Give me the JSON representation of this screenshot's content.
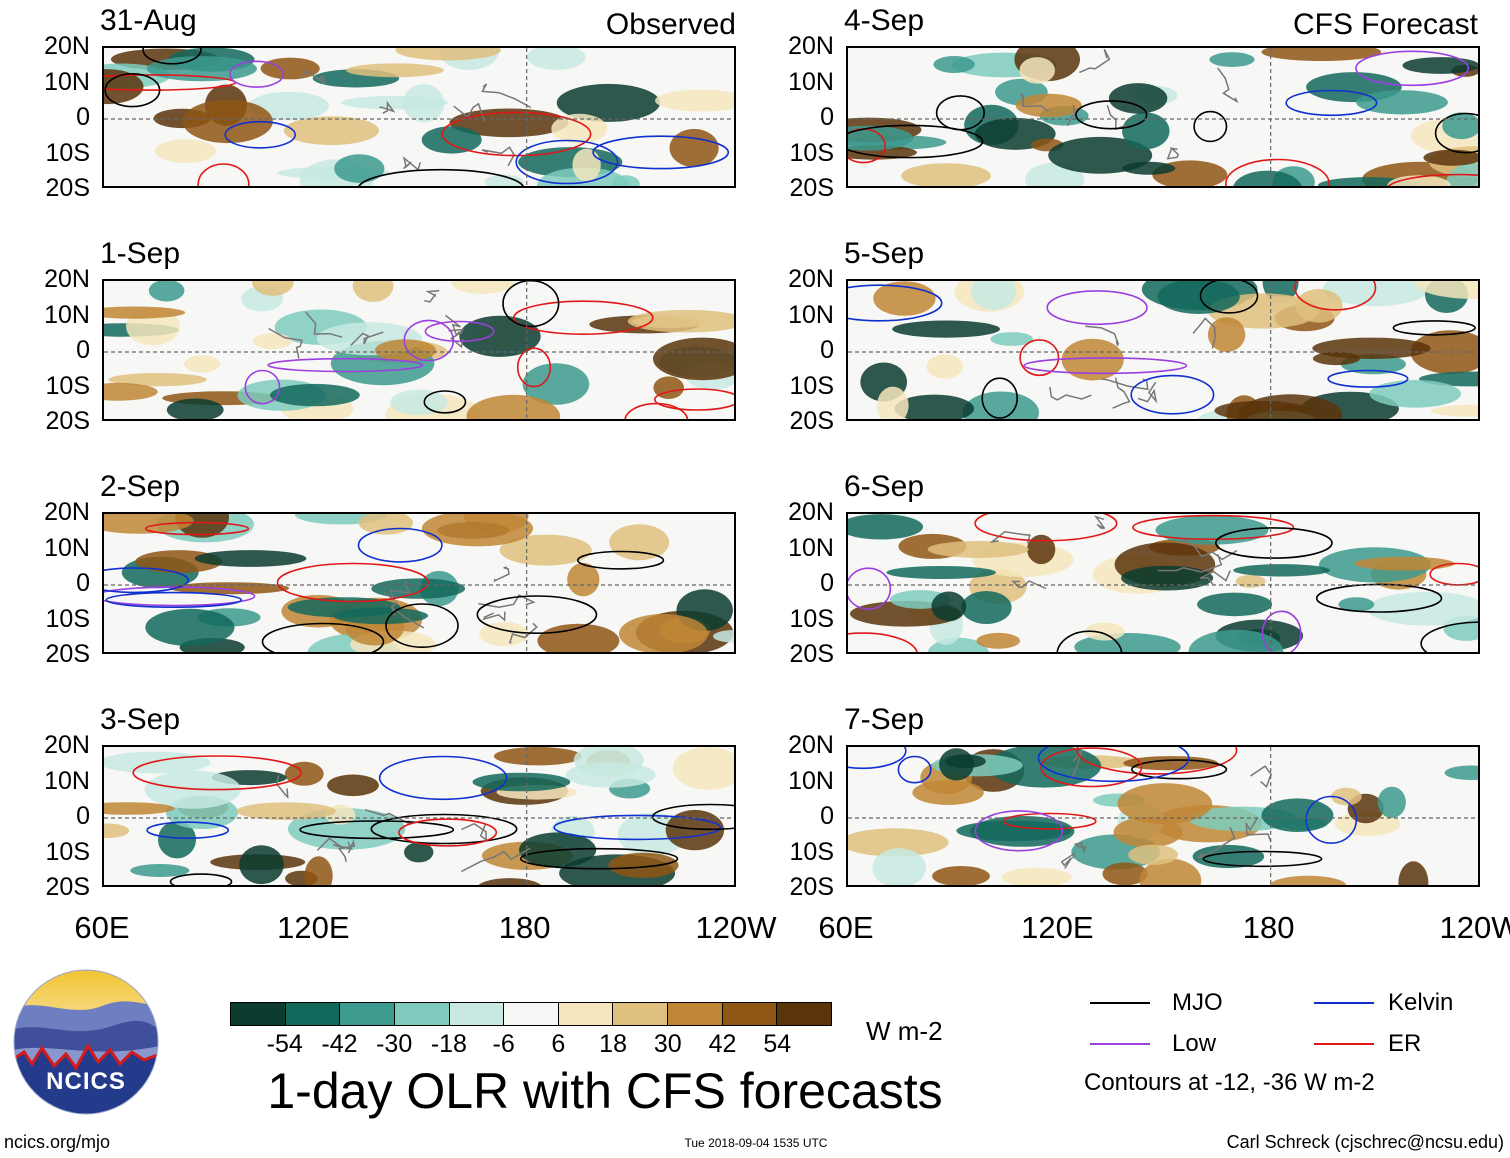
{
  "left_header": "Observed",
  "right_header": "CFS Forecast",
  "lat_labels": [
    "20N",
    "10N",
    "0",
    "10S",
    "20S"
  ],
  "lon_labels": [
    "60E",
    "120E",
    "180",
    "120W"
  ],
  "chart_data": [
    {
      "type": "heatmap",
      "date": "31-Aug",
      "group": "Observed",
      "xlim": [
        "60E",
        "120W"
      ],
      "ylim": [
        "20S",
        "20N"
      ]
    },
    {
      "type": "heatmap",
      "date": "1-Sep",
      "group": "Observed",
      "xlim": [
        "60E",
        "120W"
      ],
      "ylim": [
        "20S",
        "20N"
      ]
    },
    {
      "type": "heatmap",
      "date": "2-Sep",
      "group": "Observed",
      "xlim": [
        "60E",
        "120W"
      ],
      "ylim": [
        "20S",
        "20N"
      ]
    },
    {
      "type": "heatmap",
      "date": "3-Sep",
      "group": "Observed",
      "xlim": [
        "60E",
        "120W"
      ],
      "ylim": [
        "20S",
        "20N"
      ]
    },
    {
      "type": "heatmap",
      "date": "4-Sep",
      "group": "CFS Forecast",
      "xlim": [
        "60E",
        "120W"
      ],
      "ylim": [
        "20S",
        "20N"
      ]
    },
    {
      "type": "heatmap",
      "date": "5-Sep",
      "group": "CFS Forecast",
      "xlim": [
        "60E",
        "120W"
      ],
      "ylim": [
        "20S",
        "20N"
      ]
    },
    {
      "type": "heatmap",
      "date": "6-Sep",
      "group": "CFS Forecast",
      "xlim": [
        "60E",
        "120W"
      ],
      "ylim": [
        "20S",
        "20N"
      ]
    },
    {
      "type": "heatmap",
      "date": "7-Sep",
      "group": "CFS Forecast",
      "xlim": [
        "60E",
        "120W"
      ],
      "ylim": [
        "20S",
        "20N"
      ]
    }
  ],
  "colorbar": {
    "colors": [
      "#0b3c2f",
      "#13685c",
      "#3c9a8e",
      "#7ecbbd",
      "#c7e9e2",
      "#f7f7f5",
      "#f5e6bd",
      "#dfc07e",
      "#bf8635",
      "#8f5614",
      "#5a340a"
    ],
    "labels": [
      "-54",
      "-42",
      "-30",
      "-18",
      "-6",
      "6",
      "18",
      "30",
      "42",
      "54"
    ],
    "units": "W m-2"
  },
  "legend": {
    "items": [
      {
        "label": "MJO",
        "color": "#000000"
      },
      {
        "label": "Kelvin",
        "color": "#1030d0"
      },
      {
        "label": "Low",
        "color": "#9b3fe0"
      },
      {
        "label": "ER",
        "color": "#e01818"
      }
    ],
    "note": "Contours at -12, -36 W m-2"
  },
  "logo_text": "NCICS",
  "title": "1-day OLR with CFS forecasts",
  "footer": {
    "left": "ncics.org/mjo",
    "center": "Tue 2018-09-04 1535 UTC",
    "right": "Carl Schreck (cjschrec@ncsu.edu)"
  }
}
